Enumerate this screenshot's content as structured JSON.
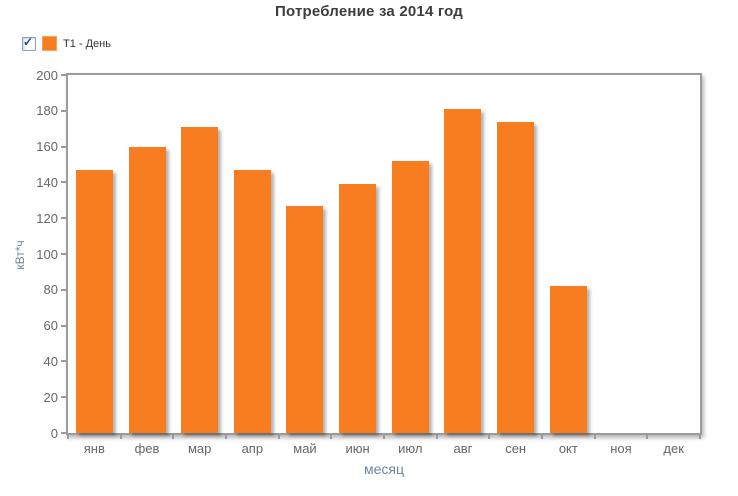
{
  "title": "Потребление за 2014 год",
  "legend": {
    "label": "T1 - День",
    "checked": true,
    "swatch_color": "#F87C20"
  },
  "chart_data": {
    "type": "bar",
    "title": "Потребление за 2014 год",
    "categories": [
      "янв",
      "фев",
      "мар",
      "апр",
      "май",
      "июн",
      "июл",
      "авг",
      "сен",
      "окт",
      "ноя",
      "дек"
    ],
    "series": [
      {
        "name": "T1 - День",
        "color": "#F87C20",
        "values": [
          147,
          160,
          171,
          147,
          127,
          139,
          152,
          181,
          174,
          82,
          0,
          0
        ]
      }
    ],
    "xlabel": "месяц",
    "ylabel": "кВт*ч",
    "ylim": [
      0,
      200
    ],
    "yticks": [
      0,
      20,
      40,
      60,
      80,
      100,
      120,
      140,
      160,
      180,
      200
    ],
    "grid": false,
    "legend_position": "top-left",
    "bar_shadow": true
  },
  "colors": {
    "bar": "#F87C20",
    "plot_border": "#9B9B9B",
    "tick_label": "#666666",
    "axis_title": "#6D869F",
    "title": "#3D3D3D",
    "legend_text": "#333333",
    "checkbox_check": "#2B3F96"
  }
}
